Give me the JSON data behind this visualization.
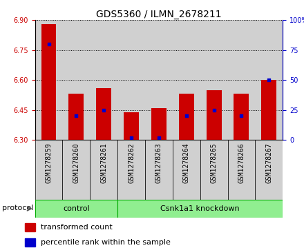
{
  "title": "GDS5360 / ILMN_2678211",
  "samples": [
    "GSM1278259",
    "GSM1278260",
    "GSM1278261",
    "GSM1278262",
    "GSM1278263",
    "GSM1278264",
    "GSM1278265",
    "GSM1278266",
    "GSM1278267"
  ],
  "bar_values": [
    6.88,
    6.53,
    6.56,
    6.44,
    6.46,
    6.53,
    6.55,
    6.53,
    6.6
  ],
  "percentile_values": [
    80,
    20,
    25,
    2,
    2,
    20,
    25,
    20,
    50
  ],
  "bar_bottom": 6.3,
  "ylim": [
    6.3,
    6.9
  ],
  "y2lim": [
    0,
    100
  ],
  "yticks": [
    6.3,
    6.45,
    6.6,
    6.75,
    6.9
  ],
  "y2ticks": [
    0,
    25,
    50,
    75,
    100
  ],
  "bar_color": "#cc0000",
  "percentile_color": "#0000cc",
  "bar_width": 0.55,
  "protocol_label": "protocol",
  "legend_items": [
    {
      "label": "transformed count",
      "color": "#cc0000"
    },
    {
      "label": "percentile rank within the sample",
      "color": "#0000cc"
    }
  ],
  "cell_bg": "#d0d0d0",
  "plot_bg": "#ffffff",
  "group_color": "#90ee90",
  "group_border": "#00aa00",
  "title_fontsize": 10,
  "tick_fontsize": 7,
  "label_fontsize": 8,
  "xtick_fontsize": 7,
  "control_count": 3,
  "knockdown_count": 6
}
